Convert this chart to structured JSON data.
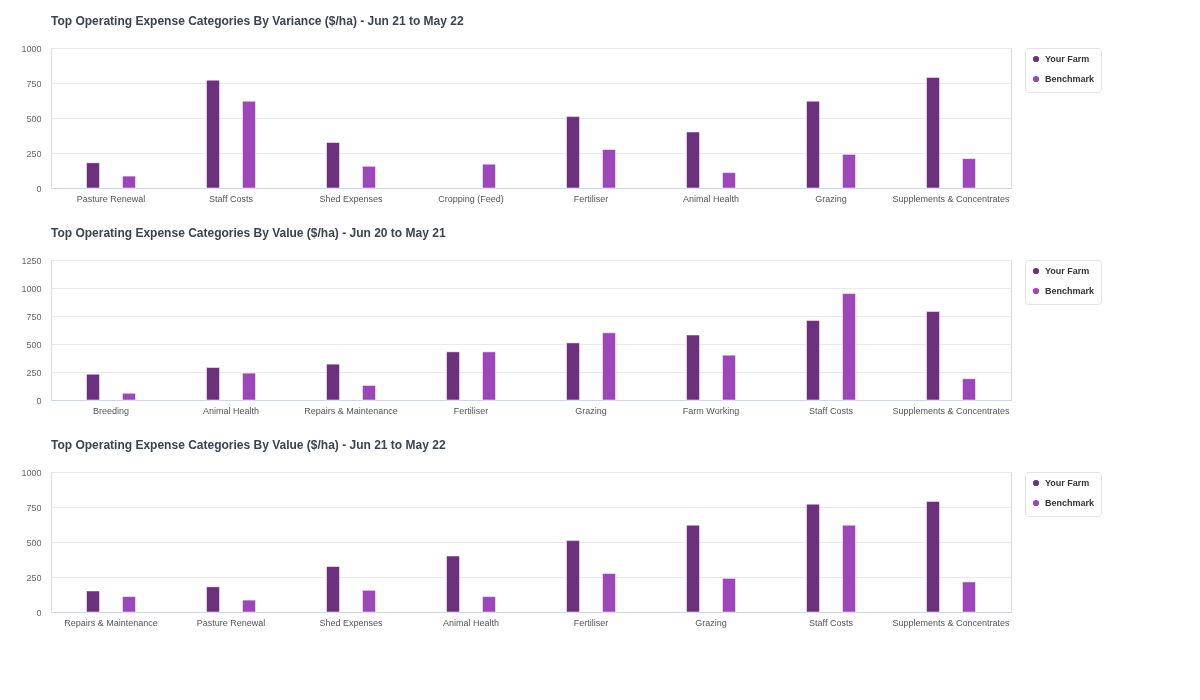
{
  "chart_data": [
    {
      "type": "bar",
      "title": "Top Operating Expense Categories By Variance ($/ha) - Jun 21 to May 22",
      "categories": [
        "Pasture Renewal",
        "Staff Costs",
        "Shed Expenses",
        "Cropping (Feed)",
        "Fertiliser",
        "Animal Health",
        "Grazing",
        "Supplements & Concentrates"
      ],
      "series": [
        {
          "name": "Your Farm",
          "color": "#6c317e",
          "values": [
            180,
            770,
            325,
            null,
            510,
            400,
            620,
            790
          ]
        },
        {
          "name": "Benchmark",
          "color": "#9b47b9",
          "values": [
            85,
            620,
            155,
            170,
            275,
            110,
            240,
            210
          ]
        }
      ],
      "ylim": [
        0,
        1000
      ],
      "yticks": [
        0,
        250,
        500,
        750,
        1000
      ],
      "grid": "y",
      "legend": "top right"
    },
    {
      "type": "bar",
      "title": "Top Operating Expense Categories By Value ($/ha) - Jun 20 to May 21",
      "categories": [
        "Breeding",
        "Animal Health",
        "Repairs & Maintenance",
        "Fertiliser",
        "Grazing",
        "Farm Working",
        "Staff Costs",
        "Supplements & Concentrates"
      ],
      "series": [
        {
          "name": "Your Farm",
          "color": "#6c317e",
          "values": [
            230,
            290,
            320,
            430,
            510,
            580,
            710,
            790
          ]
        },
        {
          "name": "Benchmark",
          "color": "#9b47b9",
          "values": [
            60,
            240,
            130,
            430,
            600,
            400,
            950,
            190
          ]
        }
      ],
      "ylim": [
        0,
        1250
      ],
      "yticks": [
        0,
        250,
        500,
        750,
        1000,
        1250
      ],
      "grid": "y",
      "legend": "top right"
    },
    {
      "type": "bar",
      "title": "Top Operating Expense Categories By Value ($/ha) - Jun 21 to May 22",
      "categories": [
        "Repairs & Maintenance",
        "Pasture Renewal",
        "Shed Expenses",
        "Animal Health",
        "Fertiliser",
        "Grazing",
        "Staff Costs",
        "Supplements & Concentrates"
      ],
      "series": [
        {
          "name": "Your Farm",
          "color": "#6c317e",
          "values": [
            150,
            180,
            325,
            400,
            510,
            620,
            770,
            790
          ]
        },
        {
          "name": "Benchmark",
          "color": "#9b47b9",
          "values": [
            110,
            85,
            155,
            110,
            275,
            240,
            620,
            215
          ]
        }
      ],
      "ylim": [
        0,
        1000
      ],
      "yticks": [
        0,
        250,
        500,
        750,
        1000
      ],
      "grid": "y",
      "legend": "top right"
    }
  ]
}
